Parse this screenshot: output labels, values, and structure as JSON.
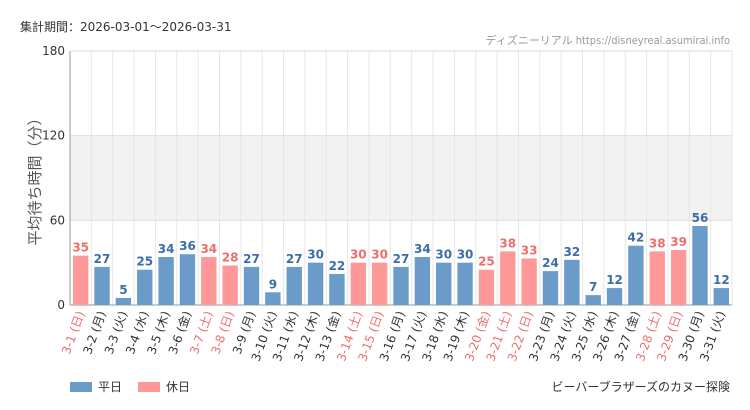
{
  "header": {
    "period": "集計期間：2026-03-01〜2026-03-31",
    "source": "ディズニーリアル https://disneyreal.asumirai.info"
  },
  "legend": {
    "weekday_label": "平日",
    "holiday_label": "休日"
  },
  "footer": {
    "attraction": "ビーバーブラザーズのカヌー探険"
  },
  "colors": {
    "weekday": "#6b9bc9",
    "holiday": "#ff9999",
    "weekday_text": "#3d6da8",
    "holiday_text": "#ee6e6e"
  },
  "chart_data": {
    "type": "bar",
    "title": "",
    "xlabel": "",
    "ylabel": "平均待ち時間（分）",
    "ylim": [
      0,
      180
    ],
    "yticks": [
      0,
      60,
      120,
      180
    ],
    "shaded_band": [
      60,
      120
    ],
    "grid": true,
    "legend_position": "bottom-left",
    "categories": [
      "3-1 (日)",
      "3-2 (月)",
      "3-3 (火)",
      "3-4 (水)",
      "3-5 (木)",
      "3-6 (金)",
      "3-7 (土)",
      "3-8 (日)",
      "3-9 (月)",
      "3-10 (火)",
      "3-11 (水)",
      "3-12 (木)",
      "3-13 (金)",
      "3-14 (土)",
      "3-15 (日)",
      "3-16 (月)",
      "3-17 (火)",
      "3-18 (水)",
      "3-19 (木)",
      "3-20 (金)",
      "3-21 (土)",
      "3-22 (日)",
      "3-23 (月)",
      "3-24 (火)",
      "3-25 (水)",
      "3-26 (木)",
      "3-27 (金)",
      "3-28 (土)",
      "3-29 (日)",
      "3-30 (月)",
      "3-31 (火)"
    ],
    "values": [
      35,
      27,
      5,
      25,
      34,
      36,
      34,
      28,
      27,
      9,
      27,
      30,
      22,
      30,
      30,
      27,
      34,
      30,
      30,
      25,
      38,
      33,
      24,
      32,
      7,
      12,
      42,
      38,
      39,
      56,
      12
    ],
    "day_type": [
      "holiday",
      "weekday",
      "weekday",
      "weekday",
      "weekday",
      "weekday",
      "holiday",
      "holiday",
      "weekday",
      "weekday",
      "weekday",
      "weekday",
      "weekday",
      "holiday",
      "holiday",
      "weekday",
      "weekday",
      "weekday",
      "weekday",
      "holiday",
      "holiday",
      "holiday",
      "weekday",
      "weekday",
      "weekday",
      "weekday",
      "weekday",
      "holiday",
      "holiday",
      "weekday",
      "weekday"
    ]
  }
}
